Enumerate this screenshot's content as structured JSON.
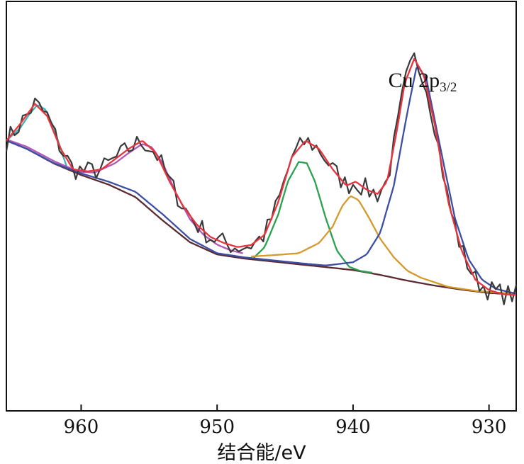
{
  "chart_data": {
    "type": "line",
    "xlabel": "结合能/eV",
    "ylabel": "",
    "title": "",
    "annotation": {
      "text_main": "Cu 2p",
      "text_sub": "3/2",
      "x": 935.3
    },
    "x_reversed": true,
    "xlim": [
      965.5,
      928.0
    ],
    "ylim": [
      0,
      100
    ],
    "xticks": [
      960,
      950,
      940,
      930
    ],
    "grid": false,
    "legend": "none",
    "noise": {
      "amplitude": 2.6,
      "step": 0.3
    },
    "series": [
      {
        "color": "#3a3a3a",
        "role": "raw",
        "points": [
          [
            965.5,
            66
          ],
          [
            964.5,
            70
          ],
          [
            963.4,
            75
          ],
          [
            962.5,
            72
          ],
          [
            961.5,
            64
          ],
          [
            960.6,
            59
          ],
          [
            959.5,
            58.5
          ],
          [
            958.5,
            59
          ],
          [
            957.5,
            61.5
          ],
          [
            956.5,
            64
          ],
          [
            955.5,
            66
          ],
          [
            954.5,
            63
          ],
          [
            953.5,
            56
          ],
          [
            952.5,
            50
          ],
          [
            951.5,
            45.5
          ],
          [
            950.5,
            42.5
          ],
          [
            949.5,
            41
          ],
          [
            948.5,
            40
          ],
          [
            947.5,
            40.5
          ],
          [
            946.5,
            43
          ],
          [
            945.5,
            51
          ],
          [
            944.5,
            62
          ],
          [
            943.5,
            66
          ],
          [
            942.5,
            64
          ],
          [
            941.5,
            59
          ],
          [
            940.5,
            55
          ],
          [
            939.8,
            56
          ],
          [
            939,
            54
          ],
          [
            938.2,
            53
          ],
          [
            937.5,
            56
          ],
          [
            936.8,
            68
          ],
          [
            936.2,
            80
          ],
          [
            935.5,
            86
          ],
          [
            934.8,
            82
          ],
          [
            934,
            70
          ],
          [
            933,
            51
          ],
          [
            932,
            39
          ],
          [
            931,
            32
          ],
          [
            930,
            29.5
          ],
          [
            929,
            28.5
          ],
          [
            928,
            28.3
          ]
        ]
      },
      {
        "color": "#e8343f",
        "role": "fit-envelope",
        "points": [
          [
            965.5,
            66
          ],
          [
            964.5,
            70
          ],
          [
            963.4,
            75
          ],
          [
            962.5,
            72
          ],
          [
            961.5,
            64
          ],
          [
            960.6,
            59
          ],
          [
            959.5,
            58.5
          ],
          [
            958.5,
            59
          ],
          [
            957.5,
            61.5
          ],
          [
            956.5,
            64
          ],
          [
            955.5,
            66
          ],
          [
            954.5,
            63
          ],
          [
            953.5,
            56
          ],
          [
            952.5,
            50
          ],
          [
            951.5,
            45.5
          ],
          [
            950.5,
            42.5
          ],
          [
            949.5,
            41
          ],
          [
            948.5,
            40
          ],
          [
            947.5,
            40.5
          ],
          [
            946.5,
            43
          ],
          [
            945.5,
            51
          ],
          [
            944.5,
            62
          ],
          [
            943.5,
            66
          ],
          [
            942.5,
            64
          ],
          [
            941.5,
            59
          ],
          [
            940.5,
            55
          ],
          [
            939.8,
            56
          ],
          [
            939,
            54
          ],
          [
            938.2,
            53
          ],
          [
            937.5,
            56
          ],
          [
            936.8,
            68
          ],
          [
            936.2,
            80
          ],
          [
            935.5,
            86
          ],
          [
            934.8,
            82
          ],
          [
            934,
            70
          ],
          [
            933,
            51
          ],
          [
            932,
            39
          ],
          [
            931,
            32
          ],
          [
            930,
            29.5
          ],
          [
            929,
            28.5
          ],
          [
            928,
            28.3
          ]
        ]
      },
      {
        "color": "#3c4fa3",
        "role": "component-Cu2p3/2",
        "points": [
          [
            965.5,
            66
          ],
          [
            964,
            64
          ],
          [
            962,
            60.5
          ],
          [
            960,
            58
          ],
          [
            958,
            56
          ],
          [
            956,
            53.5
          ],
          [
            954,
            48
          ],
          [
            952,
            42
          ],
          [
            950,
            38.5
          ],
          [
            948,
            37.5
          ],
          [
            946,
            36.8
          ],
          [
            944,
            36.1
          ],
          [
            942,
            35.5
          ],
          [
            940,
            36.3
          ],
          [
            939,
            38.2
          ],
          [
            938,
            43.5
          ],
          [
            937,
            55
          ],
          [
            936,
            73
          ],
          [
            935.3,
            84.5
          ],
          [
            934.6,
            81
          ],
          [
            933.5,
            63
          ],
          [
            932.5,
            47
          ],
          [
            931.5,
            37
          ],
          [
            930.5,
            32
          ],
          [
            929.5,
            29.8
          ],
          [
            928,
            28.6
          ]
        ]
      },
      {
        "color": "#d49a2a",
        "role": "component-satellite-1",
        "points": [
          [
            947.5,
            37.7
          ],
          [
            946,
            38
          ],
          [
            944,
            38.5
          ],
          [
            942.5,
            41
          ],
          [
            941.5,
            45
          ],
          [
            940.8,
            50
          ],
          [
            940.2,
            52.5
          ],
          [
            939.6,
            51.5
          ],
          [
            938.8,
            47
          ],
          [
            938,
            42
          ],
          [
            937,
            37.5
          ],
          [
            936,
            34.2
          ],
          [
            935,
            32.5
          ],
          [
            933,
            30.3
          ],
          [
            931,
            29.3
          ],
          [
            929,
            28.8
          ],
          [
            928,
            28.7
          ]
        ]
      },
      {
        "color": "#2aa14f",
        "role": "component-satellite-2",
        "points": [
          [
            947.3,
            37.4
          ],
          [
            946.5,
            40
          ],
          [
            945.5,
            48
          ],
          [
            944.8,
            56
          ],
          [
            944,
            60.8
          ],
          [
            943.4,
            60.5
          ],
          [
            942.8,
            56
          ],
          [
            942,
            47
          ],
          [
            941.2,
            39.2
          ],
          [
            940.3,
            35.2
          ],
          [
            939.5,
            34.2
          ],
          [
            938.5,
            33.7
          ]
        ]
      },
      {
        "color": "#3fb4b2",
        "role": "component-satellite-3",
        "points": [
          [
            965.5,
            66
          ],
          [
            964.5,
            69
          ],
          [
            963.8,
            72.5
          ],
          [
            963.2,
            74.8
          ],
          [
            962.6,
            73.5
          ],
          [
            962,
            69
          ],
          [
            961.4,
            63
          ],
          [
            961,
            59
          ]
        ]
      },
      {
        "color": "#b256b8",
        "role": "component-satellite-4",
        "points": [
          [
            965.5,
            66.3
          ],
          [
            964,
            64.5
          ],
          [
            962,
            61
          ],
          [
            960.2,
            58.4
          ],
          [
            959,
            58.2
          ],
          [
            957.5,
            60.5
          ],
          [
            956.5,
            63
          ],
          [
            955.5,
            65.2
          ],
          [
            954.8,
            64.4
          ],
          [
            954,
            60.5
          ],
          [
            953,
            53
          ],
          [
            952,
            46.8
          ],
          [
            951,
            43
          ],
          [
            950,
            40.6
          ],
          [
            949,
            39.2
          ],
          [
            948,
            38.4
          ]
        ]
      },
      {
        "color": "#5a2a30",
        "role": "background",
        "points": [
          [
            965.5,
            66
          ],
          [
            964,
            64
          ],
          [
            962,
            60.4
          ],
          [
            960,
            57.6
          ],
          [
            958,
            55.3
          ],
          [
            956,
            52.2
          ],
          [
            954,
            46.5
          ],
          [
            952,
            41.2
          ],
          [
            950,
            38.2
          ],
          [
            948,
            37.2
          ],
          [
            946,
            36.5
          ],
          [
            944,
            35.8
          ],
          [
            942,
            35.1
          ],
          [
            940,
            34.4
          ],
          [
            938,
            33.2
          ],
          [
            936,
            31.8
          ],
          [
            934,
            30.6
          ],
          [
            932,
            29.6
          ],
          [
            930,
            28.8
          ],
          [
            928,
            28.4
          ]
        ]
      }
    ]
  }
}
